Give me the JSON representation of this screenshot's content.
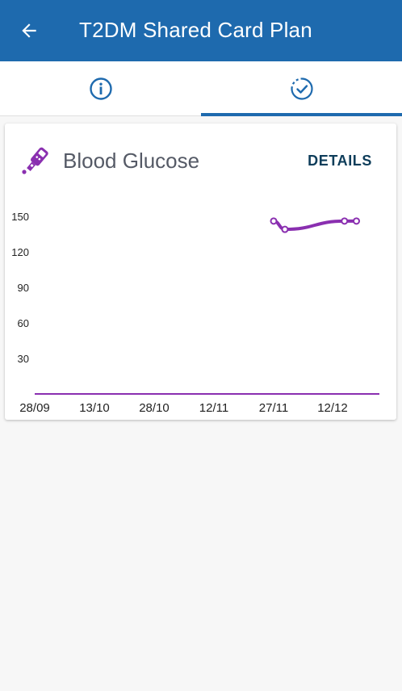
{
  "app_bar": {
    "title": "T2DM Shared Card Plan",
    "back_icon": "arrow-left-icon"
  },
  "tabs": [
    {
      "icon": "info-circle-icon",
      "active": false
    },
    {
      "icon": "check-circle-dashed-icon",
      "active": true
    }
  ],
  "colors": {
    "primary": "#1e6aae",
    "series": "#8a2fb0",
    "details": "#0e3d5a",
    "background": "#f7f7f7"
  },
  "card": {
    "title": "Blood Glucose",
    "icon": "glucose-meter-icon",
    "details_label": "DETAILS"
  },
  "chart_data": {
    "type": "line",
    "y_ticks": [
      150,
      120,
      90,
      60,
      30
    ],
    "x_ticks": [
      "28/09",
      "13/10",
      "28/10",
      "12/11",
      "27/11",
      "12/12"
    ],
    "ylim": [
      0,
      150
    ],
    "grid": false,
    "series": [
      {
        "x": [
          "27/11",
          "30/11",
          "15/12",
          "18/12"
        ],
        "values": [
          146,
          139,
          146,
          146
        ]
      }
    ]
  }
}
